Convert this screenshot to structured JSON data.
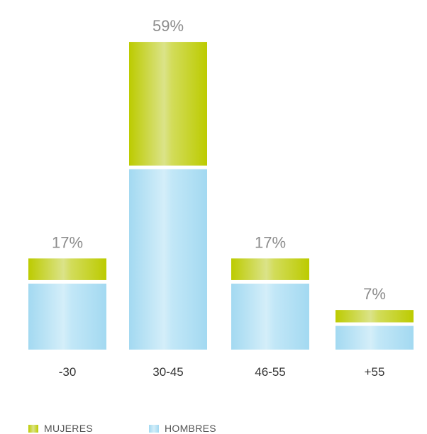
{
  "chart_data": {
    "type": "bar",
    "stacked": true,
    "categories": [
      "-30",
      "30-45",
      "46-55",
      "+55"
    ],
    "totals_labels": [
      "17%",
      "59%",
      "17%",
      "7%"
    ],
    "totals": [
      17,
      59,
      17,
      7
    ],
    "series": [
      {
        "name": "MUJERES",
        "color": "#c6d300",
        "values": [
          4.2,
          24,
          4.2,
          2.4
        ]
      },
      {
        "name": "HOMBRES",
        "color": "#a8dcf2",
        "values": [
          12.8,
          35,
          12.8,
          4.6
        ]
      }
    ],
    "grid": false,
    "legend": "bottom-left"
  }
}
